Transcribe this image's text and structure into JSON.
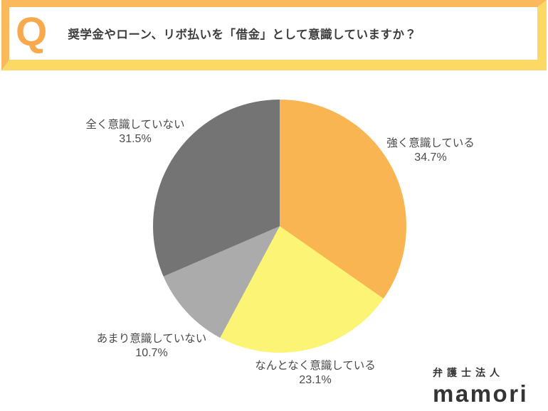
{
  "header": {
    "q_mark": "Q",
    "question": "奨学金やローン、リボ払いを「借金」として意識していますか？"
  },
  "colors": {
    "frame_top_left": "#FBB95C",
    "frame_bottom_right": "#FBD964",
    "q_mark": "#F8A94C",
    "text": "#3C3C3C",
    "label_text": "#4A4A4A"
  },
  "chart_data": {
    "type": "pie",
    "title": "奨学金やローン、リボ払いを「借金」として意識していますか？",
    "start_angle_deg": 0,
    "direction": "clockwise",
    "unit": "%",
    "legend_position": "labels-around-pie",
    "segments": [
      {
        "label": "強く意識している",
        "value": 34.7,
        "pct": "34.7%",
        "color": "#FAB553"
      },
      {
        "label": "なんとなく意識している",
        "value": 23.1,
        "pct": "23.1%",
        "color": "#FBF474"
      },
      {
        "label": "あまり意識していない",
        "value": 10.7,
        "pct": "10.7%",
        "color": "#ABABAB"
      },
      {
        "label": "全く意識していない",
        "value": 31.5,
        "pct": "31.5%",
        "color": "#747474"
      }
    ]
  },
  "logo": {
    "line1": "弁護士法人",
    "line2": "mamori"
  }
}
